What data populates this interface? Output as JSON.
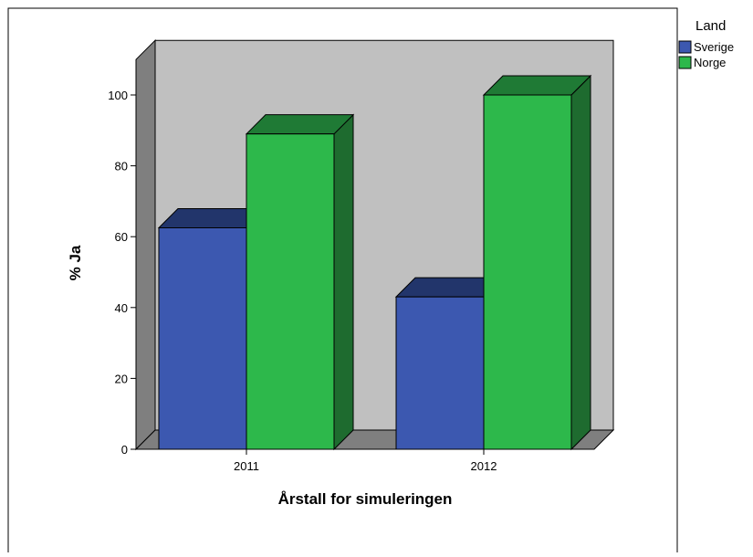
{
  "chart_data": {
    "type": "bar",
    "title": "",
    "xlabel": "Årstall for simuleringen",
    "ylabel": "% Ja",
    "categories": [
      "2011",
      "2012"
    ],
    "series": [
      {
        "name": "Sverige",
        "values": [
          62.5,
          43
        ],
        "color": "#3c58b0",
        "top_color": "#22356b",
        "side_color": "#1d2f66"
      },
      {
        "name": "Norge",
        "values": [
          89,
          100
        ],
        "color": "#2db84b",
        "top_color": "#1f7a35",
        "side_color": "#1e6b2f"
      }
    ],
    "ylim": [
      0,
      110
    ],
    "yticks": [
      0,
      20,
      40,
      60,
      80,
      100
    ],
    "legend": {
      "title": "Land",
      "position": "top-right"
    },
    "three_d": true,
    "grid": false,
    "colors": {
      "wall": "#c0c0c0",
      "side_wall": "#7f7f7f",
      "floor": "#7f7f7f"
    }
  }
}
